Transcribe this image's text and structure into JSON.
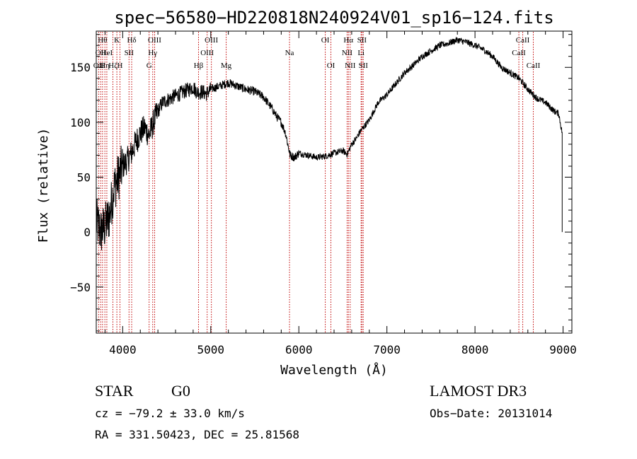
{
  "title": "spec−56580−HD220818N240924V01_sp16−124.fits",
  "footer": {
    "class_label": "STAR",
    "subclass_label": "G0",
    "survey": "LAMOST DR3",
    "cz": "cz = −79.2 ± 33.0 km/s",
    "obs_date": "Obs−Date: 20131014",
    "radec": "RA = 331.50423, DEC =  25.81568"
  },
  "colors": {
    "spectrum": "#000000",
    "lines": "#c00000",
    "axes": "#000000"
  },
  "chart_data": {
    "type": "line",
    "xlabel": "Wavelength (Å)",
    "ylabel": "Flux (relative)",
    "xlim": [
      3700,
      9100
    ],
    "ylim": [
      -92,
      183
    ],
    "x_ticks": [
      4000,
      5000,
      6000,
      7000,
      8000,
      9000
    ],
    "y_ticks": [
      -50,
      0,
      50,
      100,
      150
    ],
    "x_tick_labels": [
      "4000",
      "5000",
      "6000",
      "7000",
      "8000",
      "9000"
    ],
    "y_tick_labels": [
      "−50",
      "0",
      "50",
      "100",
      "150"
    ],
    "series": [
      {
        "x": [
          3700,
          3750,
          3800,
          3850,
          3900,
          3950,
          4000,
          4050,
          4100,
          4150,
          4200,
          4250,
          4300,
          4350,
          4400,
          4450,
          4500,
          4550,
          4600,
          4650,
          4700,
          4750,
          4800,
          4850,
          4900,
          4950,
          5000,
          5100,
          5200,
          5300,
          5400,
          5500,
          5600,
          5700,
          5750,
          5800,
          5850,
          5900,
          5950,
          6000,
          6100,
          6200,
          6300,
          6400,
          6500,
          6550,
          6600,
          6650,
          6700,
          6800,
          6900,
          7000,
          7100,
          7200,
          7300,
          7400,
          7500,
          7600,
          7700,
          7800,
          7900,
          8000,
          8100,
          8200,
          8300,
          8400,
          8500,
          8600,
          8700,
          8800,
          8900,
          8950,
          8990
        ],
        "y": [
          10,
          0,
          5,
          15,
          40,
          50,
          60,
          65,
          72,
          82,
          90,
          95,
          88,
          100,
          110,
          118,
          120,
          122,
          124,
          126,
          128,
          130,
          132,
          127,
          128,
          126,
          130,
          133,
          136,
          133,
          130,
          128,
          123,
          112,
          105,
          100,
          90,
          70,
          68,
          72,
          70,
          68,
          69,
          72,
          74,
          71,
          80,
          85,
          92,
          102,
          118,
          125,
          135,
          145,
          152,
          160,
          165,
          170,
          172,
          175,
          173,
          170,
          166,
          160,
          150,
          145,
          140,
          130,
          122,
          118,
          110,
          108,
          90
        ]
      }
    ],
    "lines": [
      {
        "wl": 3727,
        "labels": [
          {
            "text": "OII",
            "row": 2
          }
        ]
      },
      {
        "wl": 3750,
        "labels": [
          {
            "text": "OII",
            "row": 1
          }
        ]
      },
      {
        "wl": 3771,
        "labels": [
          {
            "text": "Hθ",
            "row": 0
          }
        ]
      },
      {
        "wl": 3798,
        "labels": [
          {
            "text": "Hη",
            "row": 2
          }
        ]
      },
      {
        "wl": 3820,
        "labels": [
          {
            "text": "HeI",
            "row": 1
          }
        ]
      },
      {
        "wl": 3889,
        "labels": [
          {
            "text": "Hζ",
            "row": 2
          }
        ]
      },
      {
        "wl": 3934,
        "labels": [
          {
            "text": "K",
            "row": 0
          }
        ]
      },
      {
        "wl": 3969,
        "labels": [
          {
            "text": "H",
            "row": 2
          }
        ]
      },
      {
        "wl": 4072,
        "labels": [
          {
            "text": "SII",
            "row": 1
          }
        ]
      },
      {
        "wl": 4102,
        "labels": [
          {
            "text": "Hδ",
            "row": 0
          }
        ]
      },
      {
        "wl": 4300,
        "labels": [
          {
            "text": "G",
            "row": 2
          }
        ]
      },
      {
        "wl": 4341,
        "labels": [
          {
            "text": "Hγ",
            "row": 1
          }
        ]
      },
      {
        "wl": 4363,
        "labels": [
          {
            "text": "OIII",
            "row": 0
          }
        ]
      },
      {
        "wl": 4861,
        "labels": [
          {
            "text": "Hβ",
            "row": 2
          }
        ]
      },
      {
        "wl": 4959,
        "labels": [
          {
            "text": "OIII",
            "row": 1
          }
        ]
      },
      {
        "wl": 5007,
        "labels": [
          {
            "text": "OIII",
            "row": 0
          }
        ]
      },
      {
        "wl": 5175,
        "labels": [
          {
            "text": "Mg",
            "row": 2
          }
        ]
      },
      {
        "wl": 5894,
        "labels": [
          {
            "text": "Na",
            "row": 1
          }
        ]
      },
      {
        "wl": 6300,
        "labels": [
          {
            "text": "OI",
            "row": 0
          }
        ]
      },
      {
        "wl": 6364,
        "labels": [
          {
            "text": "OI",
            "row": 2
          }
        ]
      },
      {
        "wl": 6548,
        "labels": [
          {
            "text": "NII",
            "row": 1
          }
        ]
      },
      {
        "wl": 6563,
        "labels": [
          {
            "text": "Hα",
            "row": 0
          }
        ]
      },
      {
        "wl": 6583,
        "labels": [
          {
            "text": "NII",
            "row": 2
          }
        ]
      },
      {
        "wl": 6707,
        "labels": [
          {
            "text": "Li",
            "row": 1
          }
        ]
      },
      {
        "wl": 6716,
        "labels": [
          {
            "text": "SII",
            "row": 0
          }
        ]
      },
      {
        "wl": 6731,
        "labels": [
          {
            "text": "SII",
            "row": 2
          }
        ]
      },
      {
        "wl": 8498,
        "labels": [
          {
            "text": "CaII",
            "row": 1
          }
        ]
      },
      {
        "wl": 8542,
        "labels": [
          {
            "text": "CaII",
            "row": 0
          }
        ]
      },
      {
        "wl": 8662,
        "labels": [
          {
            "text": "CaII",
            "row": 2
          }
        ]
      }
    ]
  }
}
